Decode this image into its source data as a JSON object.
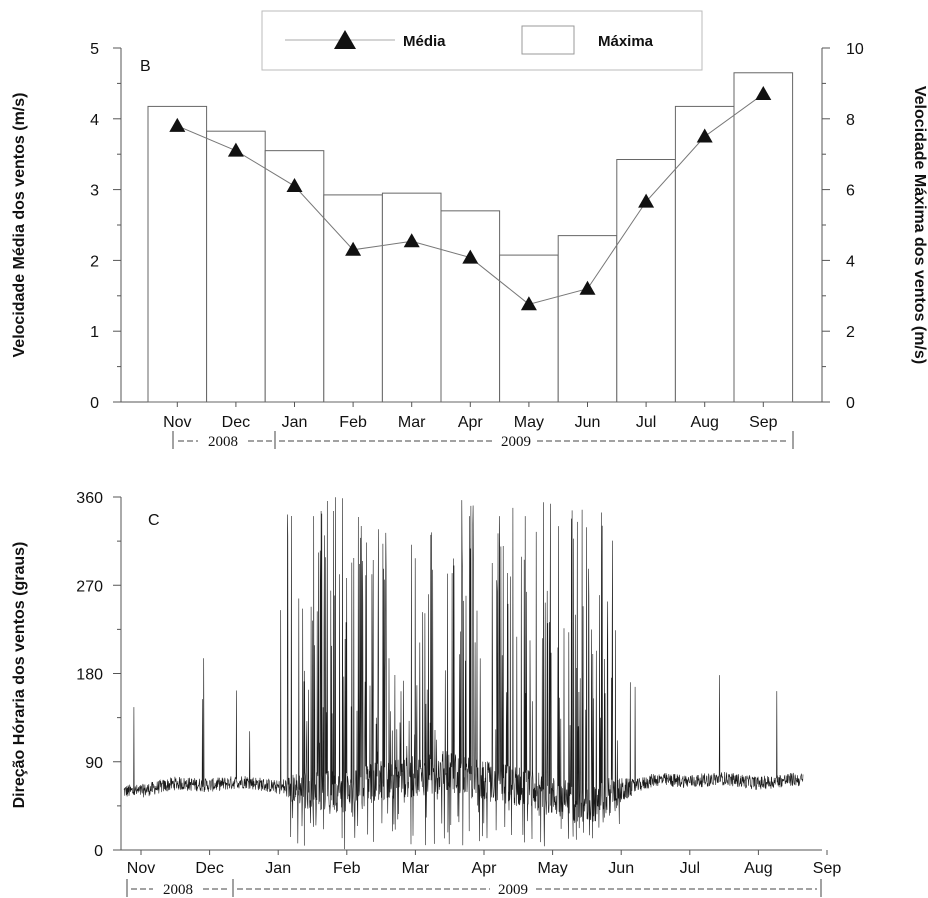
{
  "chart_data": [
    {
      "type": "bar",
      "panel_label": "B",
      "categories": [
        "Nov",
        "Dec",
        "Jan",
        "Feb",
        "Mar",
        "Apr",
        "May",
        "Jun",
        "Jul",
        "Aug",
        "Sep"
      ],
      "ylabel": "Velocidade Média dos ventos (m/s)",
      "y2label": "Velocidade Máxima dos ventos (m/s)",
      "ylim": [
        0,
        5
      ],
      "y2lim": [
        0,
        10
      ],
      "yticks": [
        "0",
        "1",
        "2",
        "3",
        "4",
        "5"
      ],
      "y2ticks": [
        "0",
        "2",
        "4",
        "6",
        "8",
        "10"
      ],
      "series": [
        {
          "name": "Máxima",
          "axis": "right",
          "kind": "bar",
          "values": [
            8.35,
            7.65,
            7.1,
            5.85,
            5.9,
            5.4,
            4.15,
            4.7,
            6.85,
            8.35,
            9.3
          ]
        },
        {
          "name": "Média",
          "axis": "left",
          "kind": "line-triangle",
          "values": [
            3.9,
            3.55,
            3.05,
            2.15,
            2.27,
            2.04,
            1.38,
            1.6,
            2.83,
            3.75,
            4.35
          ]
        }
      ],
      "legend": {
        "placement": "top-center",
        "entries": [
          "Média",
          "Máxima"
        ]
      },
      "year_labels": [
        "2008",
        "2009"
      ]
    },
    {
      "type": "line",
      "panel_label": "C",
      "categories": [
        "Nov",
        "Dec",
        "Jan",
        "Feb",
        "Mar",
        "Apr",
        "May",
        "Jun",
        "Jul",
        "Aug",
        "Sep"
      ],
      "ylabel": "Direção Hóraria dos ventos (graus)",
      "ylim": [
        0,
        360
      ],
      "yticks": [
        "0",
        "90",
        "180",
        "270",
        "360"
      ],
      "series": [
        {
          "name": "",
          "x": [
            0,
            0.5,
            1,
            1.5,
            2,
            2.5,
            3,
            3.5,
            4,
            4.5,
            5,
            5.5,
            6,
            6.5,
            7,
            7.5,
            8,
            8.5,
            9,
            9.5,
            10,
            10.5,
            11
          ],
          "values": [
            60,
            68,
            66,
            70,
            64,
            62,
            58,
            72,
            75,
            80,
            70,
            65,
            55,
            45,
            60,
            72,
            70,
            73,
            68,
            72,
            70,
            68,
            66
          ]
        }
      ],
      "year_labels": [
        "2008",
        "2009"
      ]
    }
  ]
}
